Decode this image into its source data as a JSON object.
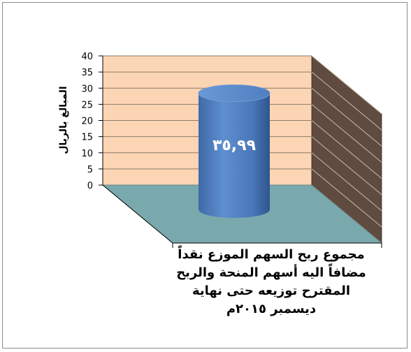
{
  "chart_data": {
    "type": "bar",
    "style": "3d-cylinder",
    "title": "",
    "ylabel": "المبالغ بالريال",
    "xlabel": "",
    "ylim": [
      0,
      40
    ],
    "yticks": [
      "0",
      "5",
      "10",
      "15",
      "20",
      "25",
      "30",
      "35",
      "40"
    ],
    "grid": true,
    "categories": [
      "مجموع ربح السهم الموزع نقداً مضافاً اليه أسهم المنحة والربح المقترح توزيعه حتى نهاية ديسمبر ٢٠١٥م"
    ],
    "category_label_lines": [
      "مجموع ربح السهم الموزع نقداً",
      "مضافاً اليه أسهم المنحة والربح",
      "المقترح توزيعه حتى نهاية",
      "ديسمبر ٢٠١٥م"
    ],
    "values": [
      35.99
    ],
    "data_labels": [
      "٣٥,٩٩"
    ],
    "colors": {
      "back_wall": "#fcd5b4",
      "side_wall": "#5f4b3f",
      "floor": "#7aa9ad",
      "bar": "#4f81bd",
      "grid": "#8b7d6b"
    }
  }
}
